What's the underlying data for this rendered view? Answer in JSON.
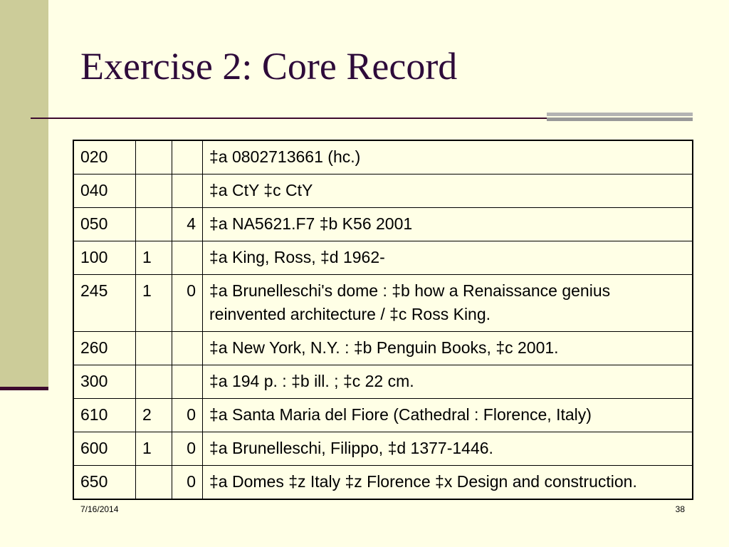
{
  "slide": {
    "title": "Exercise 2: Core Record",
    "footer_date": "7/16/2014",
    "footer_page": "38"
  },
  "table": {
    "rows": [
      {
        "tag": "020",
        "ind1": "",
        "ind2": "",
        "content": "‡a 0802713661 (hc.)"
      },
      {
        "tag": "040",
        "ind1": "",
        "ind2": "",
        "content": "‡a CtY ‡c CtY"
      },
      {
        "tag": "050",
        "ind1": "",
        "ind2": "4",
        "content": "‡a NA5621.F7 ‡b K56 2001"
      },
      {
        "tag": "100",
        "ind1": "1",
        "ind2": "",
        "content": "‡a King, Ross, ‡d 1962-"
      },
      {
        "tag": "245",
        "ind1": "1",
        "ind2": "0",
        "content": "‡a Brunelleschi's dome : ‡b how a Renaissance genius reinvented architecture / ‡c Ross King."
      },
      {
        "tag": "260",
        "ind1": "",
        "ind2": "",
        "content": "‡a New York, N.Y. : ‡b Penguin Books, ‡c 2001."
      },
      {
        "tag": "300",
        "ind1": "",
        "ind2": "",
        "content": "‡a 194 p. : ‡b ill. ; ‡c 22 cm."
      },
      {
        "tag": "610",
        "ind1": "2",
        "ind2": "0",
        "content": "‡a Santa Maria del Fiore (Cathedral : Florence, Italy)"
      },
      {
        "tag": "600",
        "ind1": "1",
        "ind2": "0",
        "content": "‡a Brunelleschi, Filippo, ‡d 1377-1446."
      },
      {
        "tag": "650",
        "ind1": "",
        "ind2": "0",
        "content": "‡a Domes ‡z Italy ‡z Florence ‡x Design and construction."
      }
    ]
  }
}
